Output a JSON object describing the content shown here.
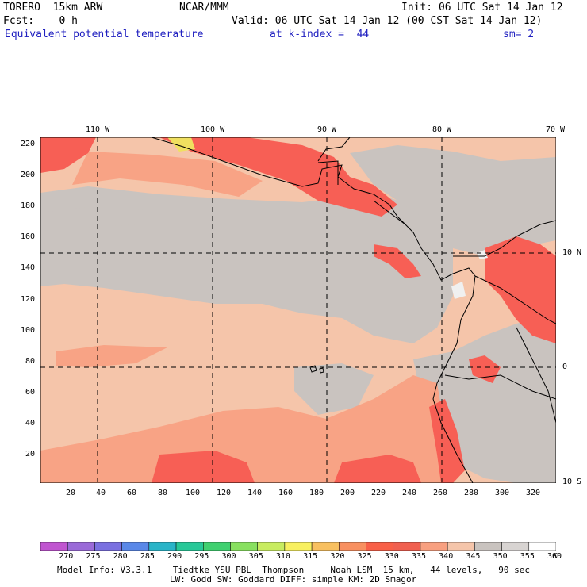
{
  "header": {
    "model": "TORERO  15km ARW",
    "center": "NCAR/MMM",
    "init": "Init: 06 UTC Sat 14 Jan 12",
    "fcst": "Fcst:    0 h",
    "valid": "Valid: 06 UTC Sat 14 Jan 12 (00 CST Sat 14 Jan 12)",
    "field": "Equivalent potential temperature",
    "level": "at k-index =  44",
    "smooth": "sm= 2"
  },
  "map": {
    "top_lon_labels": [
      "110 W",
      "100 W",
      "90 W",
      "80 W",
      "70 W"
    ],
    "right_lat_labels": [
      "10 N",
      "0",
      "10 S"
    ],
    "left_grid_labels": [
      "220",
      "200",
      "180",
      "160",
      "140",
      "120",
      "100",
      "80",
      "60",
      "40",
      "20"
    ],
    "bottom_grid_labels": [
      "20",
      "40",
      "60",
      "80",
      "100",
      "120",
      "140",
      "160",
      "180",
      "200",
      "220",
      "240",
      "260",
      "280",
      "300",
      "320"
    ],
    "colors": {
      "ocean_main": "#f5c5aa",
      "ocean_gray": "#c9c3bf",
      "warm": "#f8a385",
      "hot": "#f75f55",
      "very_hot": "#f0e060",
      "light_gray": "#d7d2d0",
      "white": "#f0f0f0"
    }
  },
  "colorbar": {
    "labels": [
      "270",
      "275",
      "280",
      "285",
      "290",
      "295",
      "300",
      "305",
      "310",
      "315",
      "320",
      "325",
      "330",
      "335",
      "340",
      "345",
      "350",
      "355",
      "360"
    ],
    "unit": "K",
    "colors": [
      "#c055d0",
      "#9a6ad8",
      "#7a70e0",
      "#5a88e8",
      "#2ab4c8",
      "#28c898",
      "#40d070",
      "#88e060",
      "#c8ec60",
      "#f8f060",
      "#f8c060",
      "#f89060",
      "#f86048",
      "#f06050",
      "#f8a080",
      "#f5c5aa",
      "#c9c3bf",
      "#d8d4d2",
      "#ffffff"
    ]
  },
  "footer": {
    "line1": "Model Info: V3.3.1    Tiedtke YSU PBL  Thompson     Noah LSM  15 km,   44 levels,   90 sec",
    "line2": "LW: Godd SW: Goddard DIFF: simple KM: 2D Smagor"
  }
}
